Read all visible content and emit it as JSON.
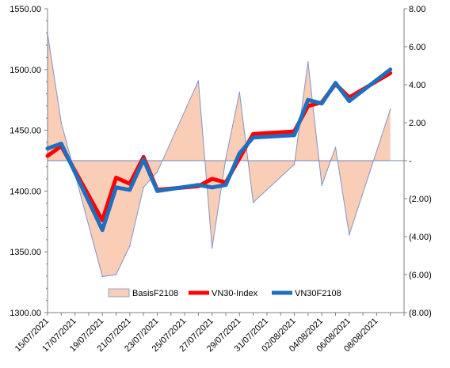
{
  "chart_data": {
    "type": "line",
    "title": "",
    "x_tick_labels": [
      "15/07/2021",
      "17/07/2021",
      "19/07/2021",
      "21/07/2021",
      "23/07/2021",
      "25/07/2021",
      "27/07/2021",
      "29/07/2021",
      "31/07/2021",
      "02/08/2021",
      "04/08/2021",
      "06/08/2021",
      "08/08/2021"
    ],
    "left_axis": {
      "min": 1300,
      "max": 1550,
      "step": 50,
      "tick_labels": [
        "1300.00",
        "1350.00",
        "1400.00",
        "1450.00",
        "1500.00",
        "1550.00"
      ]
    },
    "right_axis": {
      "min": -8,
      "max": 8,
      "step": 2,
      "tick_labels": [
        "(8.00)",
        "(6.00)",
        "(4.00)",
        "(2.00)",
        "-",
        "2.00",
        "4.00",
        "6.00",
        "8.00"
      ]
    },
    "series": [
      {
        "name": "BasisF2108",
        "kind": "area",
        "axis": "right",
        "color": "#f9cdb6",
        "edge_color": "#8096c8",
        "points": [
          [
            "2021-07-15",
            6.7
          ],
          [
            "2021-07-16",
            2.0
          ],
          [
            "2021-07-19",
            -6.1
          ],
          [
            "2021-07-20",
            -6.0
          ],
          [
            "2021-07-21",
            -4.5
          ],
          [
            "2021-07-22",
            -1.4
          ],
          [
            "2021-07-23",
            -0.6
          ],
          [
            "2021-07-26",
            4.2
          ],
          [
            "2021-07-27",
            -4.6
          ],
          [
            "2021-07-28",
            0.1
          ],
          [
            "2021-07-29",
            3.6
          ],
          [
            "2021-07-30",
            -2.2
          ],
          [
            "2021-08-02",
            -0.2
          ],
          [
            "2021-08-03",
            5.2
          ],
          [
            "2021-08-04",
            -1.3
          ],
          [
            "2021-08-05",
            0.7
          ],
          [
            "2021-08-06",
            -3.9
          ],
          [
            "2021-08-09",
            2.7
          ]
        ]
      },
      {
        "name": "VN30-Index",
        "kind": "line",
        "axis": "left",
        "color": "#ff0000",
        "points": [
          [
            "2021-07-15",
            1429
          ],
          [
            "2021-07-16",
            1437
          ],
          [
            "2021-07-19",
            1376
          ],
          [
            "2021-07-20",
            1411
          ],
          [
            "2021-07-21",
            1406
          ],
          [
            "2021-07-22",
            1428
          ],
          [
            "2021-07-23",
            1401
          ],
          [
            "2021-07-26",
            1404
          ],
          [
            "2021-07-27",
            1410
          ],
          [
            "2021-07-28",
            1407
          ],
          [
            "2021-07-29",
            1427
          ],
          [
            "2021-07-30",
            1447
          ],
          [
            "2021-08-02",
            1449
          ],
          [
            "2021-08-03",
            1470
          ],
          [
            "2021-08-04",
            1473
          ],
          [
            "2021-08-05",
            1488
          ],
          [
            "2021-08-06",
            1477
          ],
          [
            "2021-08-09",
            1497
          ]
        ]
      },
      {
        "name": "VN30F2108",
        "kind": "line",
        "axis": "left",
        "color": "#1f6fbf",
        "points": [
          [
            "2021-07-15",
            1435
          ],
          [
            "2021-07-16",
            1439
          ],
          [
            "2021-07-19",
            1368
          ],
          [
            "2021-07-20",
            1403
          ],
          [
            "2021-07-21",
            1401
          ],
          [
            "2021-07-22",
            1426
          ],
          [
            "2021-07-23",
            1400
          ],
          [
            "2021-07-26",
            1405
          ],
          [
            "2021-07-27",
            1403
          ],
          [
            "2021-07-28",
            1405
          ],
          [
            "2021-07-29",
            1431
          ],
          [
            "2021-07-30",
            1444
          ],
          [
            "2021-08-02",
            1446
          ],
          [
            "2021-08-03",
            1475
          ],
          [
            "2021-08-04",
            1472
          ],
          [
            "2021-08-05",
            1489
          ],
          [
            "2021-08-06",
            1474
          ],
          [
            "2021-08-09",
            1500
          ]
        ]
      }
    ],
    "legend_position": "bottom-center",
    "grid": false
  }
}
